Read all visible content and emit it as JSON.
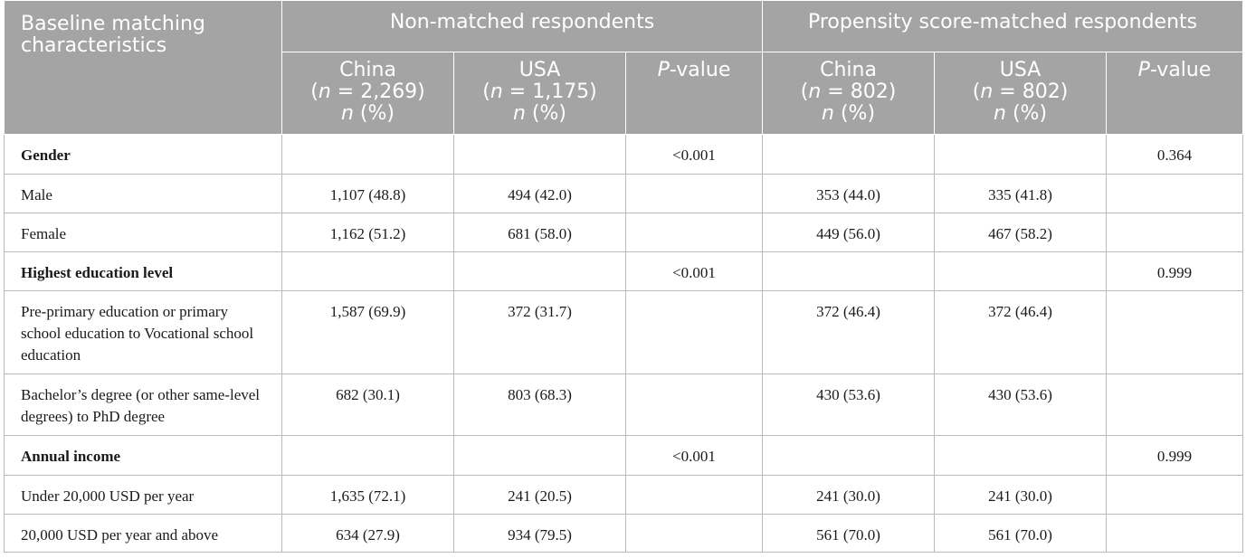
{
  "header": {
    "corner_line1": "Baseline matching",
    "corner_line2": "characteristics",
    "group_nonmatched": "Non-matched respondents",
    "group_matched": "Propensity score-matched respondents",
    "cols": [
      {
        "country": "China",
        "n_var": "n",
        "n_eq": " = 2,269)",
        "pct": " (%)"
      },
      {
        "country": "USA",
        "n_var": "n",
        "n_eq": " = 1,175)",
        "pct": " (%)"
      },
      {
        "p_italic": "P",
        "p_rest": "-value"
      },
      {
        "country": "China",
        "n_var": "n",
        "n_eq": " = 802)",
        "pct": " (%)"
      },
      {
        "country": "USA",
        "n_var": "n",
        "n_eq": " = 802)",
        "pct": " (%)"
      },
      {
        "p_italic": "P",
        "p_rest": "-value"
      }
    ]
  },
  "rows": [
    {
      "label": "Gender",
      "category": true,
      "cells": [
        "",
        "",
        "<0.001",
        "",
        "",
        "0.364"
      ]
    },
    {
      "label": "Male",
      "category": false,
      "cells": [
        "1,107 (48.8)",
        "494 (42.0)",
        "",
        "353 (44.0)",
        "335 (41.8)",
        ""
      ]
    },
    {
      "label": "Female",
      "category": false,
      "cells": [
        "1,162 (51.2)",
        "681 (58.0)",
        "",
        "449 (56.0)",
        "467 (58.2)",
        ""
      ]
    },
    {
      "label": "Highest education level",
      "category": true,
      "cells": [
        "",
        "",
        "<0.001",
        "",
        "",
        "0.999"
      ]
    },
    {
      "label": "Pre-primary education or primary school education to Vocational school education",
      "category": false,
      "cells": [
        "1,587 (69.9)",
        "372 (31.7)",
        "",
        "372 (46.4)",
        "372 (46.4)",
        ""
      ]
    },
    {
      "label": "Bachelor’s degree (or other same-level degrees) to PhD degree",
      "category": false,
      "cells": [
        "682 (30.1)",
        "803 (68.3)",
        "",
        "430 (53.6)",
        "430 (53.6)",
        ""
      ]
    },
    {
      "label": "Annual income",
      "category": true,
      "cells": [
        "",
        "",
        "<0.001",
        "",
        "",
        "0.999"
      ]
    },
    {
      "label": "Under 20,000 USD per year",
      "category": false,
      "cells": [
        "1,635 (72.1)",
        "241 (20.5)",
        "",
        "241 (30.0)",
        "241 (30.0)",
        ""
      ]
    },
    {
      "label": "20,000 USD per year and above",
      "category": false,
      "cells": [
        "634 (27.9)",
        "934 (79.5)",
        "",
        "561 (70.0)",
        "561 (70.0)",
        ""
      ]
    }
  ]
}
